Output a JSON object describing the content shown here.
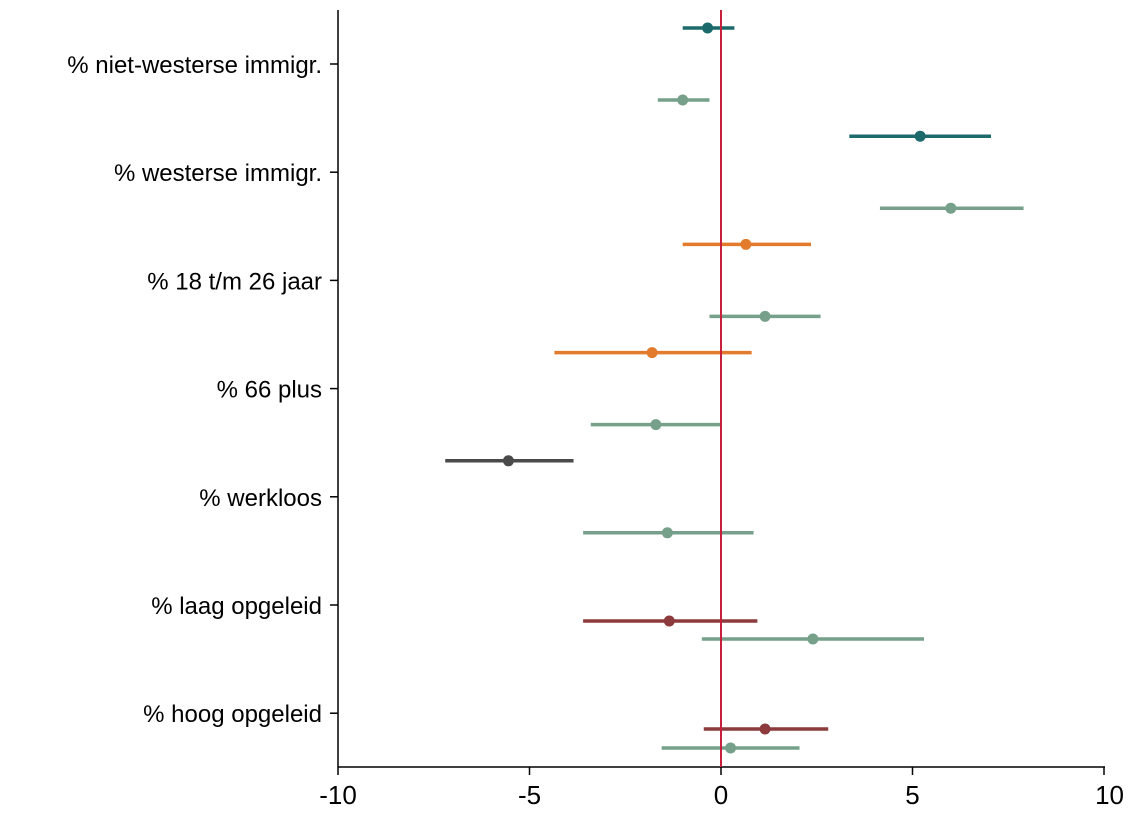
{
  "chart_data": {
    "type": "scatter",
    "subtype": "coefficient-plot",
    "title": "",
    "xlabel": "",
    "ylabel": "",
    "xlim": [
      -10,
      10
    ],
    "x_ticks": [
      "-10",
      "-5",
      "0",
      "5",
      "10"
    ],
    "grid": false,
    "legend": "none",
    "reference_line": {
      "x": 0,
      "color": "#c8203c"
    },
    "categories": [
      "% niet-westerse immigr.",
      "% westerse immigr.",
      "% 18 t/m 26 jaar",
      "% 66 plus",
      "% werkloos",
      "% laag opgeleid",
      "% hoog opgeleid"
    ],
    "points": [
      {
        "category": "% niet-westerse immigr.",
        "row": "upper",
        "estimate": -0.35,
        "ci": [
          -1.0,
          0.35
        ],
        "color": "#1c6a6c"
      },
      {
        "category": "% niet-westerse immigr.",
        "row": "lower",
        "estimate": -1.0,
        "ci": [
          -1.65,
          -0.3
        ],
        "color": "#76a08a"
      },
      {
        "category": "% westerse immigr.",
        "row": "upper",
        "estimate": 5.2,
        "ci": [
          3.35,
          7.05
        ],
        "color": "#1c6a6c"
      },
      {
        "category": "% westerse immigr.",
        "row": "lower",
        "estimate": 6.0,
        "ci": [
          4.15,
          7.9
        ],
        "color": "#76a08a"
      },
      {
        "category": "% 18 t/m 26 jaar",
        "row": "upper",
        "estimate": 0.65,
        "ci": [
          -1.0,
          2.35
        ],
        "color": "#e27c2c"
      },
      {
        "category": "% 18 t/m 26 jaar",
        "row": "lower",
        "estimate": 1.15,
        "ci": [
          -0.3,
          2.6
        ],
        "color": "#76a08a"
      },
      {
        "category": "% 66 plus",
        "row": "upper",
        "estimate": -1.8,
        "ci": [
          -4.35,
          0.8
        ],
        "color": "#e27c2c"
      },
      {
        "category": "% 66 plus",
        "row": "lower",
        "estimate": -1.7,
        "ci": [
          -3.4,
          0.0
        ],
        "color": "#76a08a"
      },
      {
        "category": "% werkloos",
        "row": "upper",
        "estimate": -5.55,
        "ci": [
          -7.2,
          -3.85
        ],
        "color": "#4a4a4a"
      },
      {
        "category": "% werkloos",
        "row": "lower",
        "estimate": -1.4,
        "ci": [
          -3.6,
          0.85
        ],
        "color": "#76a08a"
      },
      {
        "category": "% laag opgeleid",
        "row": "upper",
        "estimate": -1.35,
        "ci": [
          -3.6,
          0.95
        ],
        "color": "#8c3a3c"
      },
      {
        "category": "% laag opgeleid",
        "row": "lower",
        "estimate": 2.4,
        "ci": [
          -0.5,
          5.3
        ],
        "color": "#76a08a"
      },
      {
        "category": "% hoog opgeleid",
        "row": "upper",
        "estimate": 1.15,
        "ci": [
          -0.45,
          2.8
        ],
        "color": "#8c3a3c"
      },
      {
        "category": "% hoog opgeleid",
        "row": "lower",
        "estimate": 0.25,
        "ci": [
          -1.55,
          2.05
        ],
        "color": "#76a08a"
      }
    ]
  }
}
